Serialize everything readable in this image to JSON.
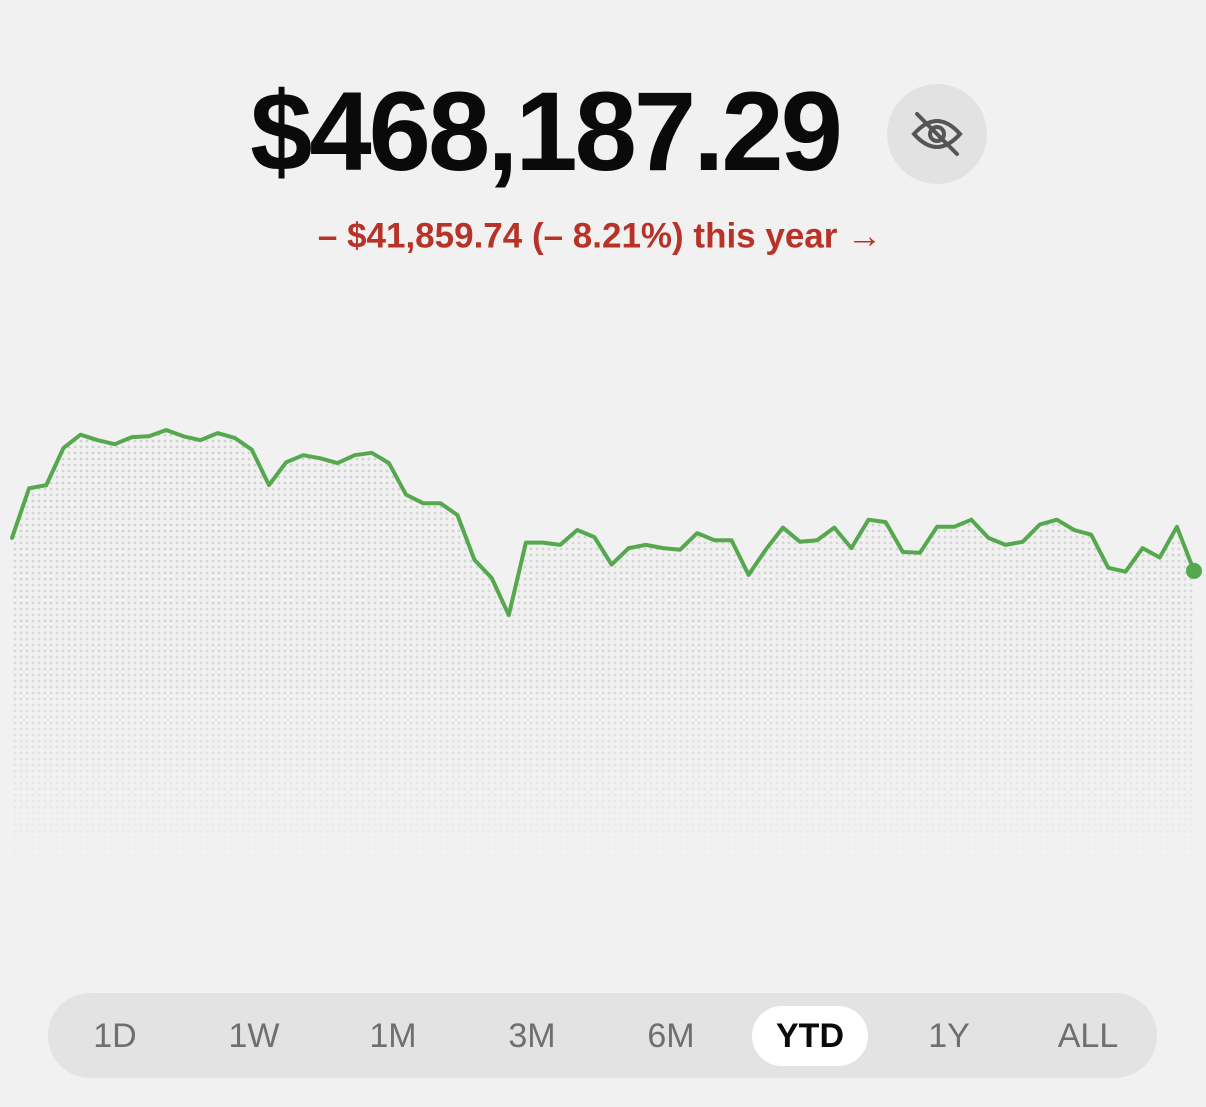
{
  "header": {
    "balance": "$468,187.29",
    "change": "– $41,859.74 (– 8.21%) this year →"
  },
  "chart_data": {
    "type": "line",
    "color": "#55a84e",
    "values": [
      510000,
      573000,
      577000,
      624000,
      641000,
      634000,
      629000,
      638000,
      639000,
      647000,
      639000,
      634000,
      643000,
      637000,
      622000,
      577000,
      606000,
      615000,
      611000,
      605000,
      615000,
      618000,
      605000,
      565000,
      554000,
      554000,
      539000,
      482000,
      459000,
      412000,
      504000,
      504000,
      501000,
      520000,
      511000,
      476000,
      497000,
      501000,
      497000,
      495000,
      516000,
      507000,
      507000,
      463000,
      495000,
      523000,
      505000,
      507000,
      523000,
      497000,
      533000,
      530000,
      492000,
      491000,
      524000,
      524000,
      533000,
      510000,
      501000,
      505000,
      527000,
      533000,
      520000,
      514000,
      472000,
      467000,
      497000,
      485000,
      524000,
      468000
    ]
  },
  "range_tabs": {
    "options": [
      "1D",
      "1W",
      "1M",
      "3M",
      "6M",
      "YTD",
      "1Y",
      "ALL"
    ],
    "selected": "YTD"
  }
}
